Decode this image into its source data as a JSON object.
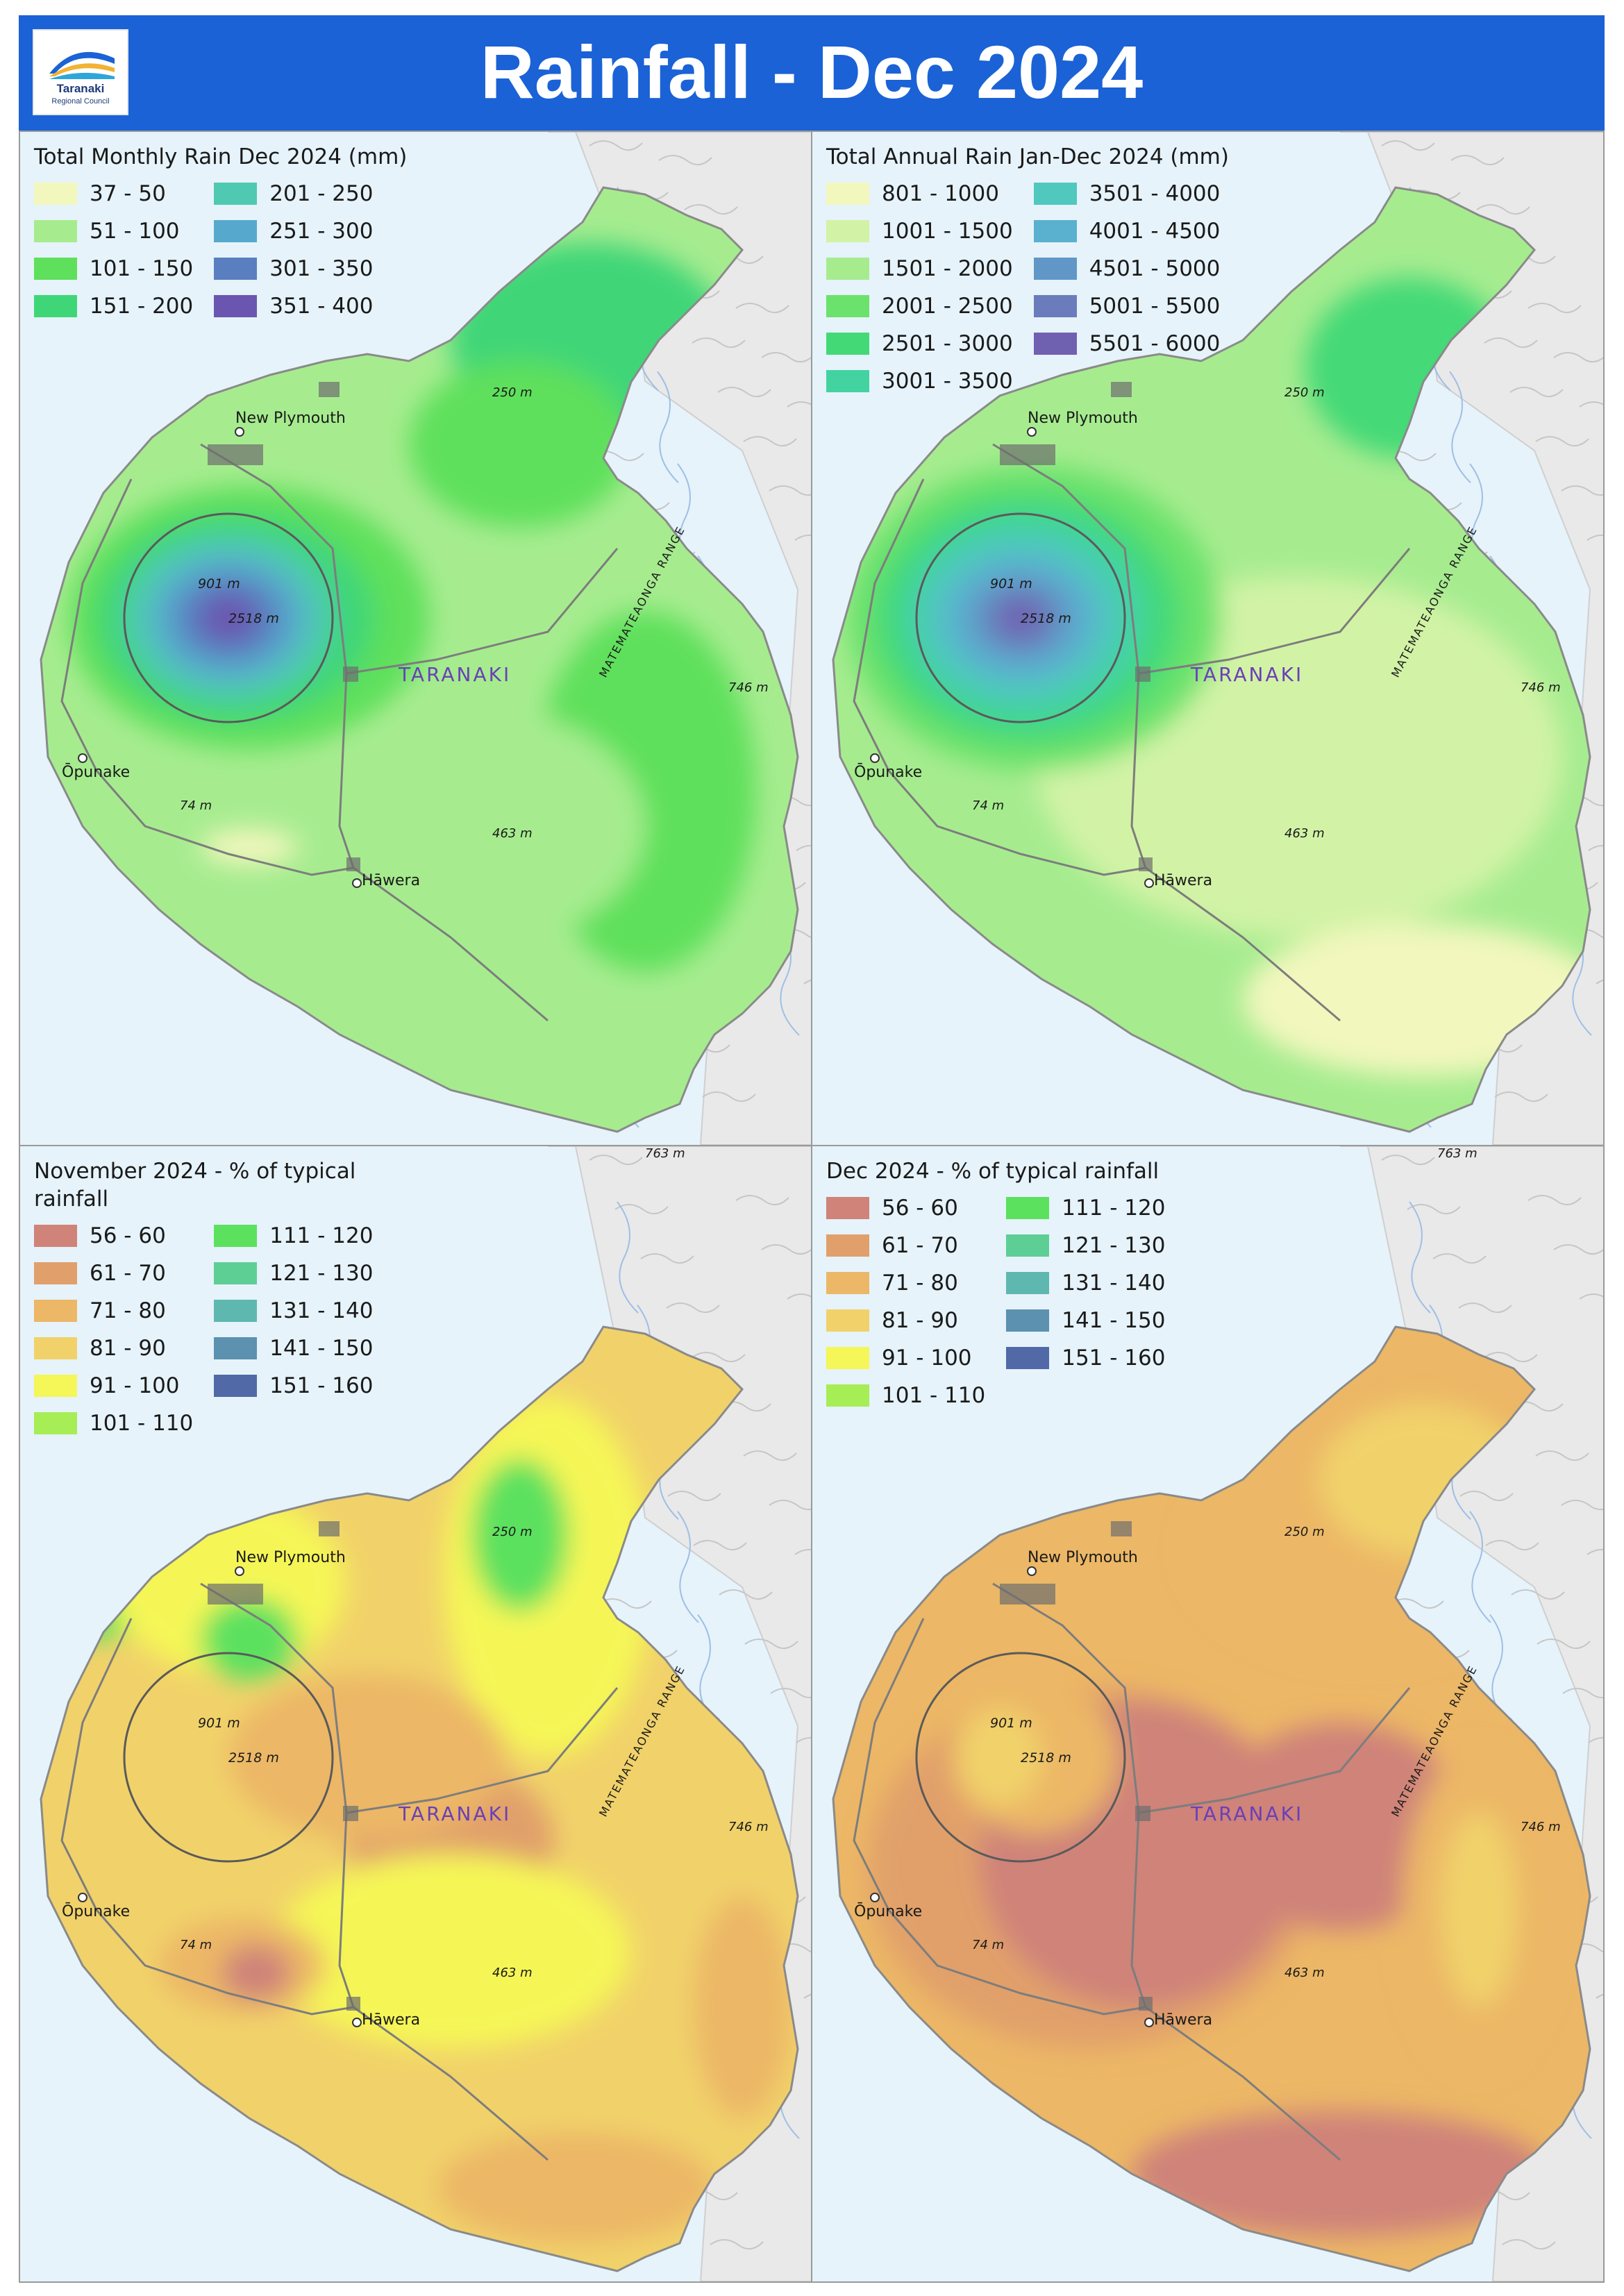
{
  "header": {
    "title": "Rainfall - Dec 2024",
    "logo_name": "Taranaki",
    "logo_sub": "Regional Council",
    "background": "#1a62d6"
  },
  "place_labels": {
    "new_plymouth": "New Plymouth",
    "opunake": "Ōpunake",
    "hawera": "Hāwera",
    "region": "TARANAKI",
    "range": "MATEMATEAONGA RANGE",
    "elev_250": "250 m",
    "elev_746": "746 m",
    "elev_463": "463 m",
    "elev_74": "74 m",
    "elev_901": "901 m",
    "elev_2518": "2518 m",
    "elev_763": "763 m"
  },
  "panels": [
    {
      "legend_title": "Total Monthly Rain Dec 2024 (mm)",
      "columns": [
        [
          {
            "label": "37 - 50",
            "color": "#f2f7bd"
          },
          {
            "label": "51 - 100",
            "color": "#a6ec8f"
          },
          {
            "label": "101 - 150",
            "color": "#5fe05c"
          },
          {
            "label": "151 - 200",
            "color": "#3fd678"
          }
        ],
        [
          {
            "label": "201 - 250",
            "color": "#4fc9b2"
          },
          {
            "label": "251 - 300",
            "color": "#56a9cc"
          },
          {
            "label": "301 - 350",
            "color": "#5a7fc0"
          },
          {
            "label": "351 - 400",
            "color": "#6a56b0"
          }
        ]
      ]
    },
    {
      "legend_title": "Total Annual Rain Jan-Dec 2024 (mm)",
      "columns": [
        [
          {
            "label": "801 - 1000",
            "color": "#f2f7bd"
          },
          {
            "label": "1001 - 1500",
            "color": "#d2f3a6"
          },
          {
            "label": "1501 - 2000",
            "color": "#a6ec8f"
          },
          {
            "label": "2001 - 2500",
            "color": "#6be26c"
          },
          {
            "label": "2501 - 3000",
            "color": "#44d977"
          },
          {
            "label": "3001 - 3500",
            "color": "#43d3a0"
          }
        ],
        [
          {
            "label": "3501 - 4000",
            "color": "#50c8bd"
          },
          {
            "label": "4001 - 4500",
            "color": "#5ab0cf"
          },
          {
            "label": "4501 - 5000",
            "color": "#6097c6"
          },
          {
            "label": "5001 - 5500",
            "color": "#6a7cbb"
          },
          {
            "label": "5501 - 6000",
            "color": "#7060b0"
          }
        ]
      ]
    },
    {
      "legend_title": "November 2024 - % of typical rainfall",
      "columns": [
        [
          {
            "label": "56 - 60",
            "color": "#cf8379"
          },
          {
            "label": "61 - 70",
            "color": "#e1a06b"
          },
          {
            "label": "71 - 80",
            "color": "#ecb766"
          },
          {
            "label": "81 - 90",
            "color": "#f1d26a"
          },
          {
            "label": "91 - 100",
            "color": "#f5f657"
          },
          {
            "label": "101 - 110",
            "color": "#a6ed56"
          }
        ],
        [
          {
            "label": "111 - 120",
            "color": "#5ce15e"
          },
          {
            "label": "121 - 130",
            "color": "#5dcf95"
          },
          {
            "label": "131 - 140",
            "color": "#5fb8b0"
          },
          {
            "label": "141 - 150",
            "color": "#5c91b0"
          },
          {
            "label": "151 - 160",
            "color": "#5169a6"
          }
        ]
      ]
    },
    {
      "legend_title": "Dec 2024 - % of typical rainfall",
      "columns": [
        [
          {
            "label": "56 - 60",
            "color": "#cf8379"
          },
          {
            "label": "61 - 70",
            "color": "#e1a06b"
          },
          {
            "label": "71 - 80",
            "color": "#ecb766"
          },
          {
            "label": "81 - 90",
            "color": "#f1d26a"
          },
          {
            "label": "91 - 100",
            "color": "#f5f657"
          },
          {
            "label": "101 - 110",
            "color": "#a6ed56"
          }
        ],
        [
          {
            "label": "111 - 120",
            "color": "#5ce15e"
          },
          {
            "label": "121 - 130",
            "color": "#5dcf95"
          },
          {
            "label": "131 - 140",
            "color": "#5fb8b0"
          },
          {
            "label": "141 - 150",
            "color": "#5c91b0"
          },
          {
            "label": "151 - 160",
            "color": "#5169a6"
          }
        ]
      ]
    }
  ]
}
